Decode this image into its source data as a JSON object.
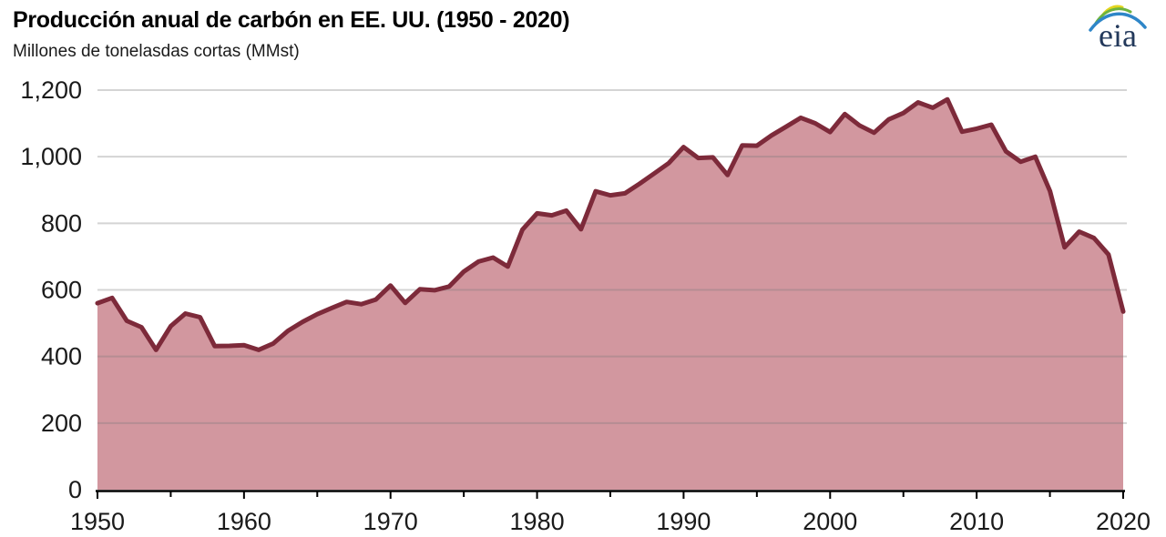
{
  "header": {
    "title": "Producción anual de carbón en EE. UU. (1950 - 2020)",
    "subtitle": "Millones de tonelasdas cortas (MMst)",
    "logo_text": "eia"
  },
  "colors": {
    "line": "#7D2A3A",
    "fill": "#D2979F",
    "gridline_rgba": "rgba(120,120,120,0.32)",
    "axis": "#000000",
    "label": "#1a1a1a",
    "logo_text": "#23395B",
    "logo_swoosh_blue": "#2E86C8",
    "logo_swoosh_green": "#6CB33F",
    "logo_swoosh_yellow": "#E3D51E"
  },
  "chart_data": {
    "type": "area",
    "title": "Producción anual de carbón en EE. UU. (1950 - 2020)",
    "xlabel": "",
    "ylabel": "Millones de tonelasdas cortas (MMst)",
    "xlim": [
      1950,
      2020
    ],
    "ylim": [
      0,
      1200
    ],
    "grid": "horizontal",
    "legend": "none",
    "x": [
      1950,
      1951,
      1952,
      1953,
      1954,
      1955,
      1956,
      1957,
      1958,
      1959,
      1960,
      1961,
      1962,
      1963,
      1964,
      1965,
      1966,
      1967,
      1968,
      1969,
      1970,
      1971,
      1972,
      1973,
      1974,
      1975,
      1976,
      1977,
      1978,
      1979,
      1980,
      1981,
      1982,
      1983,
      1984,
      1985,
      1986,
      1987,
      1988,
      1989,
      1990,
      1991,
      1992,
      1993,
      1994,
      1995,
      1996,
      1997,
      1998,
      1999,
      2000,
      2001,
      2002,
      2003,
      2004,
      2005,
      2006,
      2007,
      2008,
      2009,
      2010,
      2011,
      2012,
      2013,
      2014,
      2015,
      2016,
      2017,
      2018,
      2019,
      2020
    ],
    "values": [
      560,
      576,
      507,
      488,
      420,
      491,
      529,
      518,
      431,
      432,
      434,
      420,
      439,
      477,
      504,
      527,
      546,
      564,
      557,
      571,
      613,
      561,
      602,
      599,
      610,
      655,
      685,
      697,
      670,
      781,
      830,
      824,
      838,
      782,
      896,
      884,
      890,
      919,
      950,
      981,
      1029,
      996,
      998,
      945,
      1034,
      1033,
      1064,
      1090,
      1117,
      1100,
      1074,
      1128,
      1094,
      1072,
      1112,
      1131,
      1163,
      1147,
      1172,
      1075,
      1084,
      1096,
      1016,
      985,
      1000,
      897,
      728,
      775,
      756,
      706,
      535
    ],
    "y_ticks": [
      0,
      200,
      400,
      600,
      800,
      1000,
      1200
    ],
    "y_tick_labels": [
      "0",
      "200",
      "400",
      "600",
      "800",
      "1,000",
      "1,200"
    ],
    "x_ticks_major": [
      1950,
      1960,
      1970,
      1980,
      1990,
      2000,
      2010,
      2020
    ],
    "x_tick_minor_step": 5
  }
}
